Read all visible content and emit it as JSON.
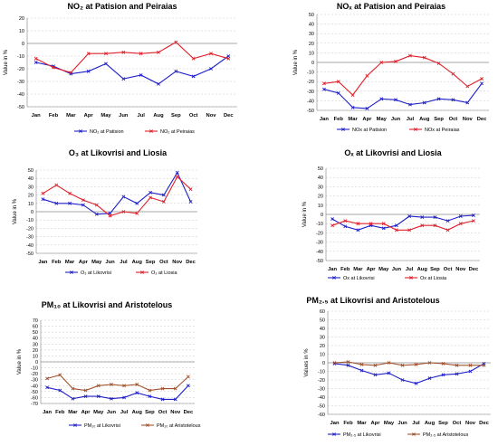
{
  "colors": {
    "blue": "#1f1fc8",
    "red": "#e0202a",
    "brown": "#a0522d",
    "grid": "#c8c8c8",
    "zero": "#8a8a8a"
  },
  "months": [
    "Jan",
    "Feb",
    "Mar",
    "Apr",
    "May",
    "Jun",
    "Jul",
    "Aug",
    "Sep",
    "Oct",
    "Nov",
    "Dec"
  ],
  "chart_data": [
    {
      "id": "c1",
      "type": "line",
      "title": "NO₂ at Patision and Peiraias",
      "ylabel": "Value in %",
      "ylim": [
        -50,
        20
      ],
      "yticks": [
        20,
        10,
        0,
        -10,
        -20,
        -30,
        -40,
        -50
      ],
      "grid": true,
      "legend": "bottom",
      "series": [
        {
          "name": "NO₂ at Patision",
          "color": "#1f1fc8",
          "values": [
            -15,
            -18,
            -24,
            -22,
            -16,
            -28,
            -25,
            -32,
            -22,
            -26,
            -20,
            -10
          ]
        },
        {
          "name": "NO₂ at Peiraias",
          "color": "#e0202a",
          "values": [
            -12,
            -19,
            -23,
            -8,
            -8,
            -7,
            -8,
            -7,
            1,
            -12,
            -8,
            -12
          ]
        }
      ]
    },
    {
      "id": "c2",
      "type": "line",
      "title": "NOₓ at Patision and Peiraias",
      "ylabel": "Value in %",
      "ylim": [
        -50,
        50
      ],
      "yticks": [
        50,
        40,
        30,
        20,
        10,
        0,
        -10,
        -20,
        -30,
        -40,
        -50
      ],
      "grid": true,
      "legend": "bottom",
      "series": [
        {
          "name": "NOx at Patision",
          "color": "#1f1fc8",
          "values": [
            -28,
            -32,
            -47,
            -48,
            -38,
            -39,
            -44,
            -42,
            -38,
            -39,
            -42,
            -22
          ]
        },
        {
          "name": "NOx at Peiraias",
          "color": "#e0202a",
          "values": [
            -22,
            -20,
            -34,
            -14,
            0,
            1,
            7,
            5,
            -1,
            -12,
            -25,
            -17
          ]
        }
      ]
    },
    {
      "id": "c3",
      "type": "line",
      "title": "O₃ at Likovrisi and Liosia",
      "ylabel": "Value in %",
      "ylim": [
        -50,
        50
      ],
      "yticks": [
        50,
        40,
        30,
        20,
        10,
        0,
        -10,
        -20,
        -30,
        -40,
        -50
      ],
      "grid": true,
      "legend": "bottom",
      "series": [
        {
          "name": "O₃ at Likovrisi",
          "color": "#1f1fc8",
          "values": [
            15,
            10,
            10,
            8,
            -3,
            -2,
            18,
            10,
            23,
            20,
            47,
            12
          ]
        },
        {
          "name": "O₃ at Liosia",
          "color": "#e0202a",
          "values": [
            22,
            32,
            22,
            14,
            8,
            -5,
            0,
            -2,
            17,
            12,
            42,
            27
          ]
        }
      ]
    },
    {
      "id": "c4",
      "type": "line",
      "title": "Oₓ at Likovrisi and Liosia",
      "ylabel": "Value in %",
      "ylim": [
        -50,
        50
      ],
      "yticks": [
        50,
        40,
        30,
        20,
        10,
        0,
        -10,
        -20,
        -30,
        -40,
        -50
      ],
      "grid": true,
      "legend": "bottom",
      "series": [
        {
          "name": "Ox at Likovrisi",
          "color": "#1f1fc8",
          "values": [
            -5,
            -13,
            -17,
            -12,
            -15,
            -12,
            -2,
            -3,
            -3,
            -7,
            -2,
            -1
          ]
        },
        {
          "name": "Ox at Liosia",
          "color": "#e0202a",
          "values": [
            -12,
            -7,
            -10,
            -10,
            -10,
            -17,
            -17,
            -12,
            -12,
            -17,
            -10,
            -7
          ]
        }
      ]
    },
    {
      "id": "c5",
      "type": "line",
      "title": "PM₁₀ at Likovrisi and Aristotelous",
      "ylabel": "Value in %",
      "ylim": [
        -70,
        70
      ],
      "yticks": [
        70,
        60,
        50,
        40,
        30,
        20,
        10,
        0,
        -10,
        -20,
        -30,
        -40,
        -50,
        -60,
        -70
      ],
      "grid": true,
      "legend": "bottom",
      "series": [
        {
          "name": "PM₁₀ at Likovrisi",
          "color": "#1f1fc8",
          "values": [
            -43,
            -48,
            -62,
            -58,
            -58,
            -62,
            -60,
            -52,
            -58,
            -63,
            -63,
            -40
          ]
        },
        {
          "name": "PM₁₀ at Aristotelous",
          "color": "#a0522d",
          "values": [
            -28,
            -22,
            -45,
            -48,
            -40,
            -38,
            -40,
            -38,
            -48,
            -45,
            -45,
            -25
          ]
        }
      ]
    },
    {
      "id": "c6",
      "type": "line",
      "title": "PM₂.₅ at Likovrisi and Aristotelous",
      "ylabel": "Values in %",
      "ylim": [
        -60,
        60
      ],
      "yticks": [
        60,
        50,
        40,
        30,
        20,
        10,
        0,
        -10,
        -20,
        -30,
        -40,
        -50,
        -60
      ],
      "grid": true,
      "legend": "bottom",
      "series": [
        {
          "name": "PM₂.₅ at Likovrisi",
          "color": "#1f1fc8",
          "values": [
            -1,
            -3,
            -9,
            -14,
            -12,
            -20,
            -24,
            -18,
            -14,
            -13,
            -10,
            -1
          ]
        },
        {
          "name": "PM₂.₅ at Aristotelous",
          "color": "#a0522d",
          "values": [
            0,
            1,
            -2,
            -3,
            0,
            -3,
            -2,
            0,
            -1,
            -3,
            -3,
            -3
          ]
        }
      ]
    }
  ]
}
